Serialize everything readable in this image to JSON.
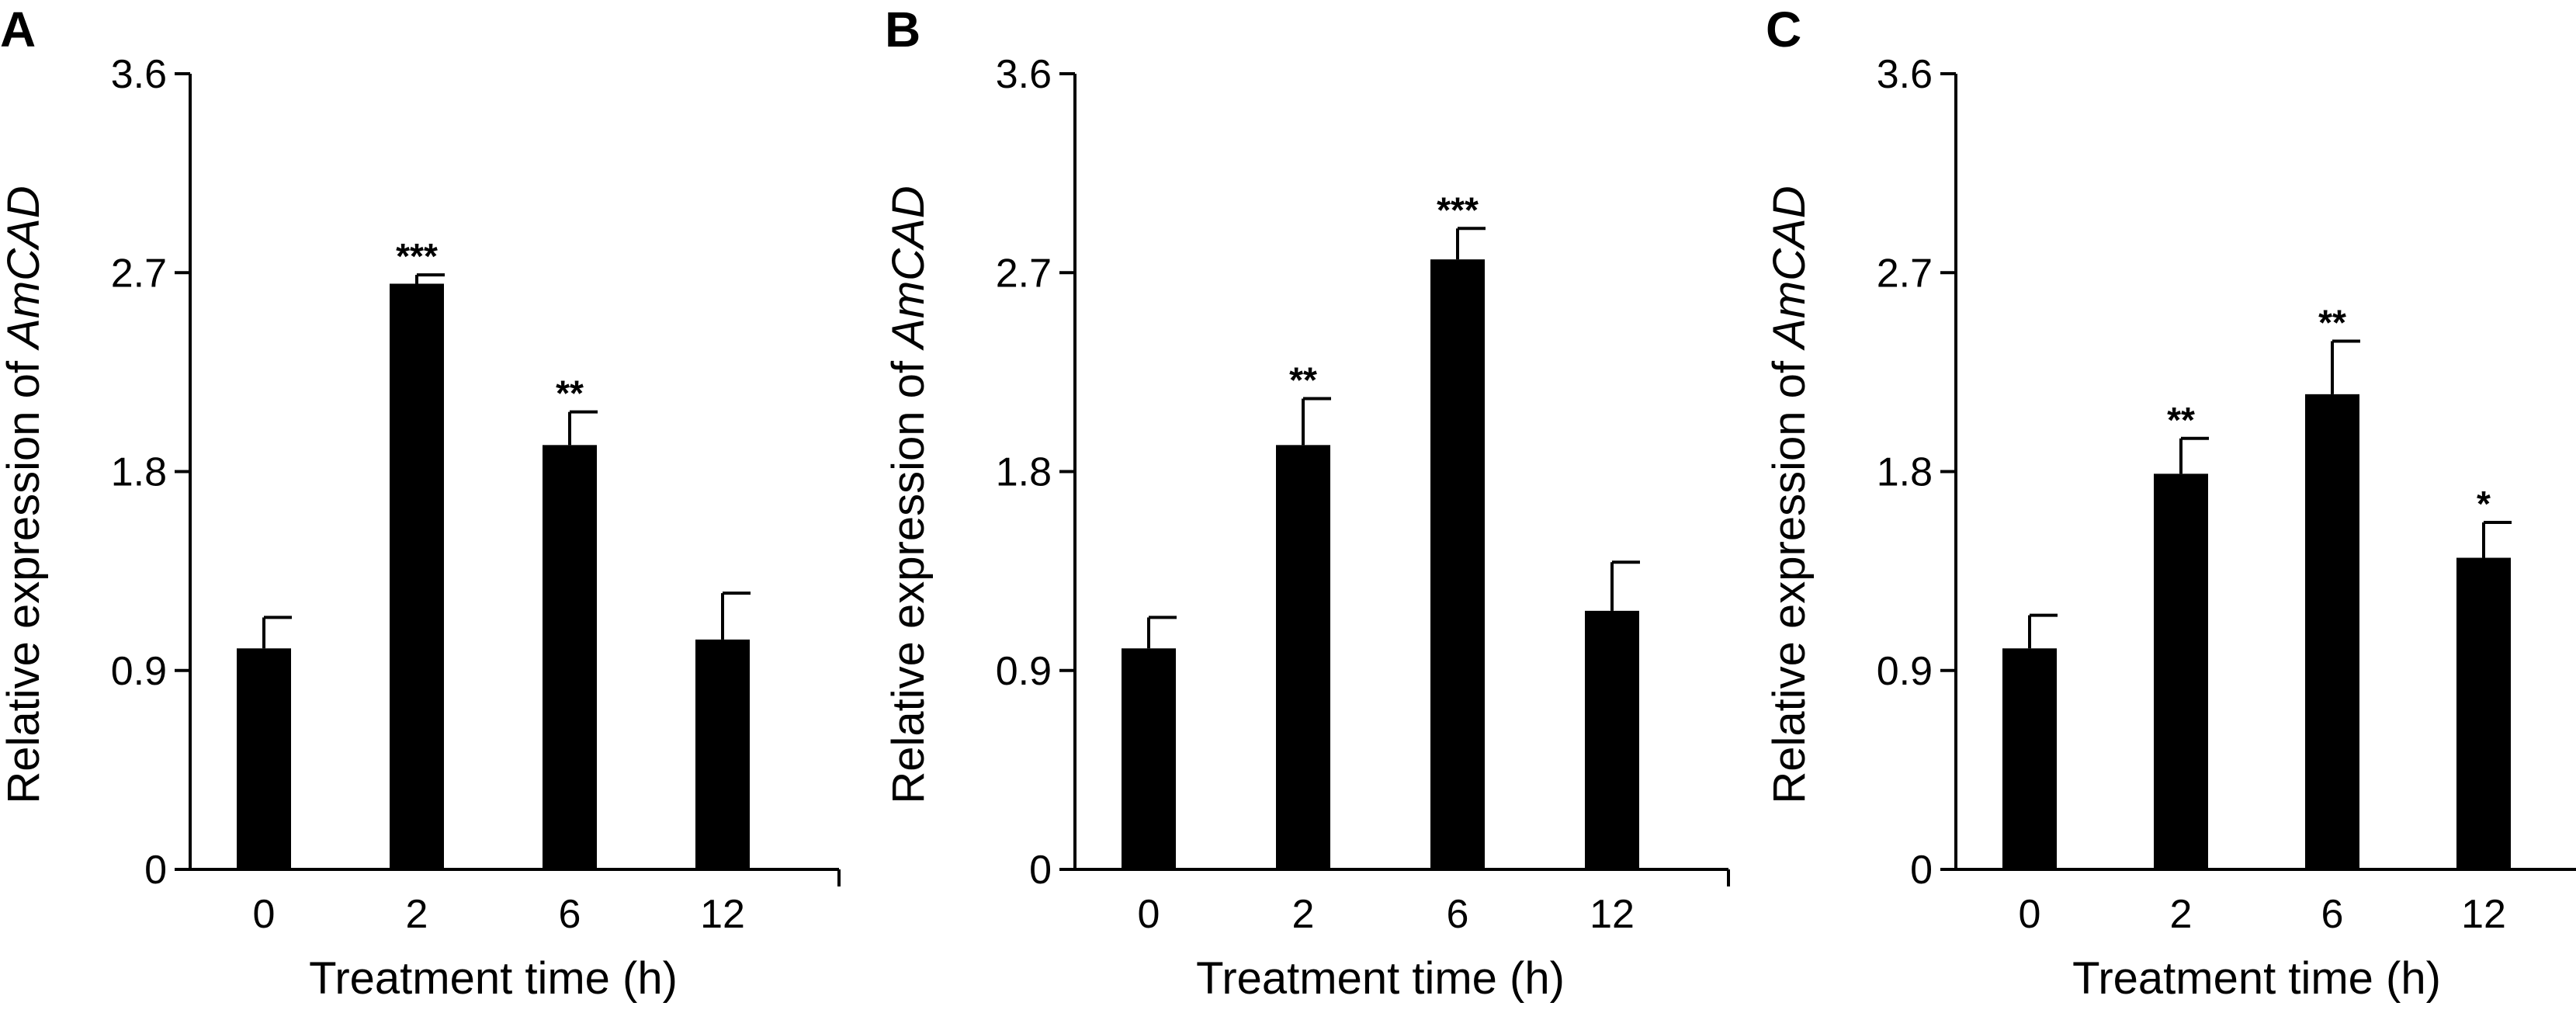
{
  "chart_data": [
    {
      "type": "bar",
      "panel": "A",
      "categories": [
        "0",
        "2",
        "6",
        "12"
      ],
      "values": [
        1.0,
        2.65,
        1.92,
        1.04
      ],
      "errors": [
        0.14,
        0.04,
        0.15,
        0.21
      ],
      "significance": [
        "",
        "***",
        "**",
        ""
      ],
      "xlabel": "Treatment time (h)",
      "ylabel_prefix": "Relative expression of ",
      "ylabel_gene": "AmCAD",
      "yticks": [
        "0",
        "0.9",
        "1.8",
        "2.7",
        "3.6"
      ],
      "ylim": [
        0,
        3.6
      ]
    },
    {
      "type": "bar",
      "panel": "B",
      "categories": [
        "0",
        "2",
        "6",
        "12"
      ],
      "values": [
        1.0,
        1.92,
        2.76,
        1.17
      ],
      "errors": [
        0.14,
        0.21,
        0.14,
        0.22
      ],
      "significance": [
        "",
        "**",
        "***",
        ""
      ],
      "xlabel": "Treatment time (h)",
      "ylabel_prefix": "Relative expression of ",
      "ylabel_gene": "AmCAD",
      "yticks": [
        "0",
        "0.9",
        "1.8",
        "2.7",
        "3.6"
      ],
      "ylim": [
        0,
        3.6
      ]
    },
    {
      "type": "bar",
      "panel": "C",
      "categories": [
        "0",
        "2",
        "6",
        "12"
      ],
      "values": [
        1.0,
        1.79,
        2.15,
        1.41
      ],
      "errors": [
        0.15,
        0.16,
        0.24,
        0.16
      ],
      "significance": [
        "",
        "**",
        "**",
        "*"
      ],
      "xlabel": "Treatment time (h)",
      "ylabel_prefix": "Relative expression of ",
      "ylabel_gene": "AmCAD",
      "yticks": [
        "0",
        "0.9",
        "1.8",
        "2.7",
        "3.6"
      ],
      "ylim": [
        0,
        3.6
      ]
    }
  ]
}
